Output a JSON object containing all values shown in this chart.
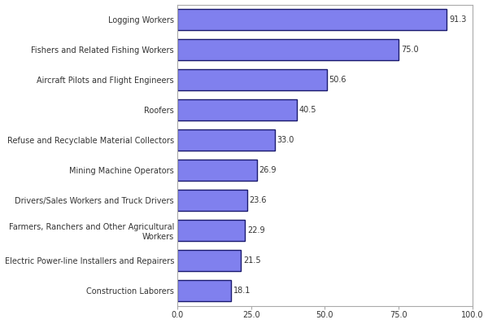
{
  "categories": [
    "Construction Laborers",
    "Electric Power-line Installers and Repairers",
    "Farmers, Ranchers and Other Agricultural\nWorkers",
    "Drivers/Sales Workers and Truck Drivers",
    "Mining Machine Operators",
    "Refuse and Recyclable Material Collectors",
    "Roofers",
    "Aircraft Pilots and Flight Engineers",
    "Fishers and Related Fishing Workers",
    "Logging Workers"
  ],
  "values": [
    18.1,
    21.5,
    22.9,
    23.6,
    26.9,
    33.0,
    40.5,
    50.6,
    75.0,
    91.3
  ],
  "bar_color": "#8080ee",
  "bar_edgecolor": "#1a1a6e",
  "value_labels": [
    "18.1",
    "21.5",
    "22.9",
    "23.6",
    "26.9",
    "33.0",
    "40.5",
    "50.6",
    "75.0",
    "91.3"
  ],
  "xlim": [
    0,
    100
  ],
  "xticks": [
    0.0,
    25.0,
    50.0,
    75.0,
    100.0
  ],
  "xtick_labels": [
    "0.0",
    "25.0",
    "50.0",
    "75.0",
    "100.0"
  ],
  "bar_height": 0.72,
  "label_fontsize": 7,
  "tick_fontsize": 7,
  "value_fontsize": 7,
  "background_color": "#ffffff",
  "plot_background": "#ffffff",
  "spine_color": "#aaaaaa",
  "grid_color": "#dddddd"
}
